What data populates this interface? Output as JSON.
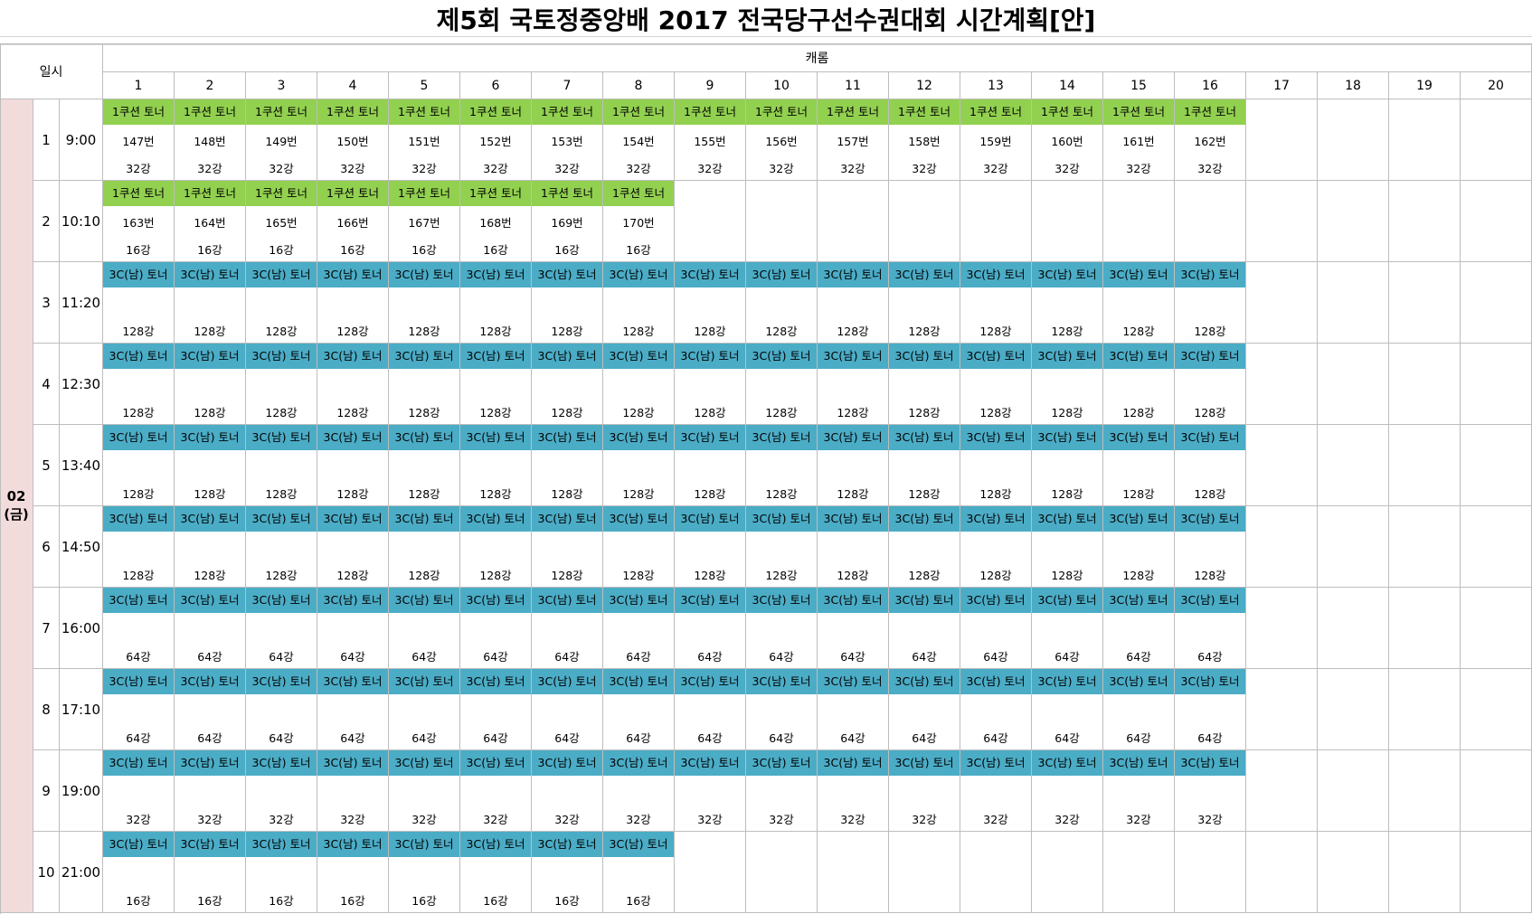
{
  "title": "제5회 국토정중앙배 2017 전국당구선수권대회 시간계획[안]",
  "header": {
    "date_label": "일시",
    "table_label": "캐롬",
    "table_numbers": [
      "1",
      "2",
      "3",
      "4",
      "5",
      "6",
      "7",
      "8",
      "9",
      "10",
      "11",
      "12",
      "13",
      "14",
      "15",
      "16",
      "17",
      "18",
      "19",
      "20"
    ]
  },
  "date": {
    "day": "02",
    "weekday": "(금)"
  },
  "colors": {
    "green": "#92d050",
    "blue": "#4bacc6",
    "date_bg": "#f2dcdb"
  },
  "rows": [
    {
      "n": "1",
      "time": "9:00",
      "event": "1쿠션 토너",
      "color": "green",
      "stage": "32강",
      "numbers": [
        "147번",
        "148번",
        "149번",
        "150번",
        "151번",
        "152번",
        "153번",
        "154번",
        "155번",
        "156번",
        "157번",
        "158번",
        "159번",
        "160번",
        "161번",
        "162번"
      ]
    },
    {
      "n": "2",
      "time": "10:10",
      "event": "1쿠션 토너",
      "color": "green",
      "stage": "16강",
      "numbers": [
        "163번",
        "164번",
        "165번",
        "166번",
        "167번",
        "168번",
        "169번",
        "170번"
      ]
    },
    {
      "n": "3",
      "time": "11:20",
      "event": "3C(남) 토너",
      "color": "blue",
      "stage": "128강",
      "count": 16
    },
    {
      "n": "4",
      "time": "12:30",
      "event": "3C(남) 토너",
      "color": "blue",
      "stage": "128강",
      "count": 16
    },
    {
      "n": "5",
      "time": "13:40",
      "event": "3C(남) 토너",
      "color": "blue",
      "stage": "128강",
      "count": 16
    },
    {
      "n": "6",
      "time": "14:50",
      "event": "3C(남) 토너",
      "color": "blue",
      "stage": "128강",
      "count": 16
    },
    {
      "n": "7",
      "time": "16:00",
      "event": "3C(남) 토너",
      "color": "blue",
      "stage": "64강",
      "count": 16
    },
    {
      "n": "8",
      "time": "17:10",
      "event": "3C(남) 토너",
      "color": "blue",
      "stage": "64강",
      "count": 16
    },
    {
      "n": "9",
      "time": "19:00",
      "event": "3C(남) 토너",
      "color": "blue",
      "stage": "32강",
      "count": 16
    },
    {
      "n": "10",
      "time": "21:00",
      "event": "3C(남) 토너",
      "color": "blue",
      "stage": "16강",
      "count": 8
    }
  ]
}
